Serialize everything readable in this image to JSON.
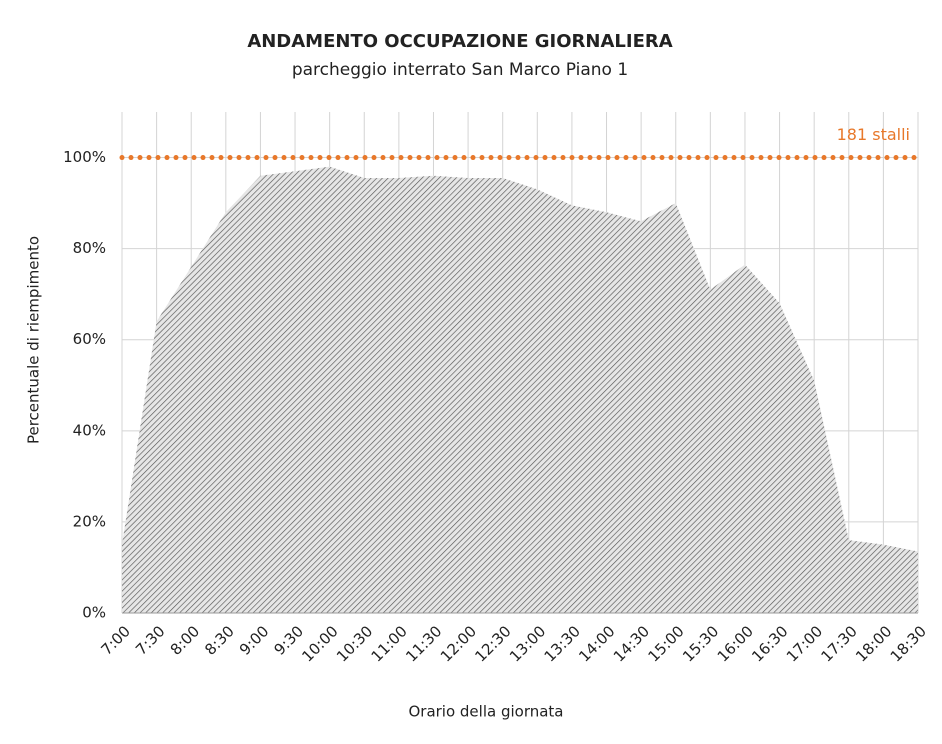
{
  "chart_data": {
    "type": "area",
    "title": "ANDAMENTO OCCUPAZIONE GIORNALIERA",
    "subtitle": "parcheggio interrato San Marco Piano 1",
    "x_label": "Orario della giornata",
    "y_label": "Percentuale di riempimento",
    "categories": [
      "7:00",
      "7:30",
      "8:00",
      "8:30",
      "9:00",
      "9:30",
      "10:00",
      "10:30",
      "11:00",
      "11:30",
      "12:00",
      "12:30",
      "13:00",
      "13:30",
      "14:00",
      "14:30",
      "15:00",
      "15:30",
      "16:00",
      "16:30",
      "17:00",
      "17:30",
      "18:00",
      "18:30"
    ],
    "values": [
      15,
      64,
      76,
      88,
      96,
      97,
      98,
      95.5,
      95.5,
      96,
      95.5,
      95.5,
      93,
      89.5,
      88,
      86,
      90,
      71,
      76.5,
      68,
      51,
      16,
      15,
      13.5
    ],
    "color": "#555555",
    "ylim": [
      0,
      110
    ],
    "yticks": [
      {
        "value": 0,
        "label": "0%"
      },
      {
        "value": 20,
        "label": "20%"
      },
      {
        "value": 40,
        "label": "40%"
      },
      {
        "value": 60,
        "label": "60%"
      },
      {
        "value": 80,
        "label": "80%"
      },
      {
        "value": 100,
        "label": "100%"
      }
    ],
    "grid": true,
    "reference_line": {
      "value": 100,
      "label": "181 stalli",
      "color": "#e8782a"
    }
  }
}
